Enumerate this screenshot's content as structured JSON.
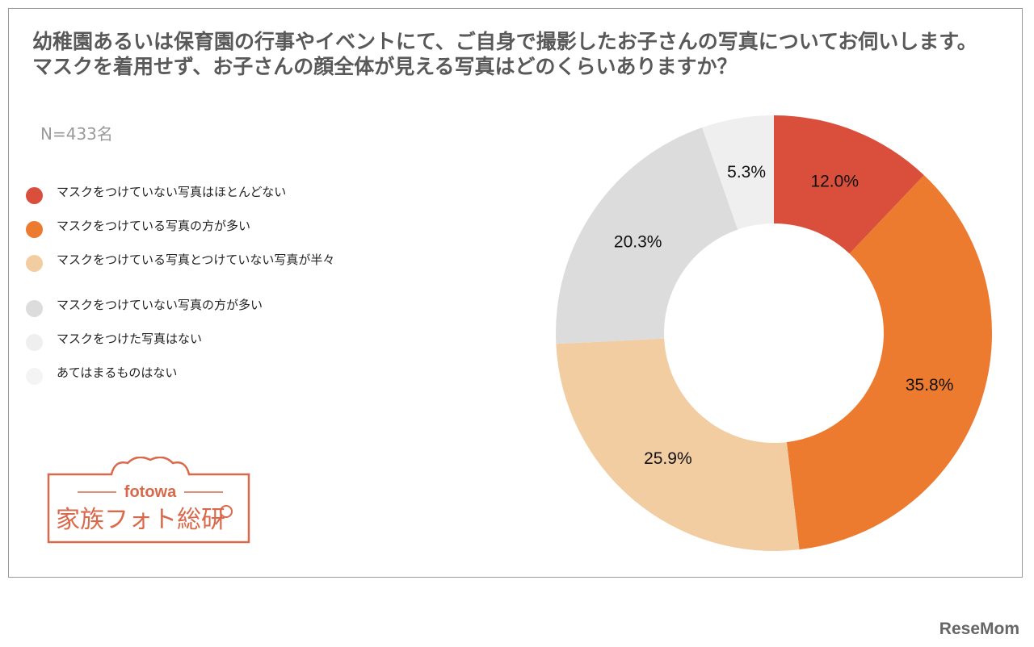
{
  "title": "幼稚園あるいは保育園の行事やイベントにて、ご自身で撮影したお子さんの写真についてお伺いします。マスクを着用せず、お子さんの顔全体が見える写真はどのくらいありますか？",
  "sample_size": "N=433名",
  "chart_data": {
    "type": "pie",
    "donut": true,
    "start_angle_deg": 0,
    "direction": "clockwise",
    "categories": [
      "マスクをつけていない写真はほとんどない",
      "マスクをつけている写真の方が多い",
      "マスクをつけている写真とつけていない写真が半々",
      "マスクをつけていない写真の方が多い",
      "マスクをつけた写真はない",
      "あてはまるものはない"
    ],
    "values": [
      12.0,
      35.8,
      25.9,
      20.3,
      5.3,
      0.0
    ],
    "value_labels": [
      "12.0%",
      "35.8%",
      "25.9%",
      "20.3%",
      "5.3%",
      ""
    ],
    "colors": [
      "#d94f3b",
      "#ec7a2f",
      "#f2cda2",
      "#dcdcdc",
      "#efefef",
      "#f4f4f4"
    ],
    "legend_position": "left"
  },
  "logo": {
    "brand": "fotowa",
    "name": "家族フォト総研",
    "color": "#d9694a"
  },
  "watermark": "ReseMom"
}
